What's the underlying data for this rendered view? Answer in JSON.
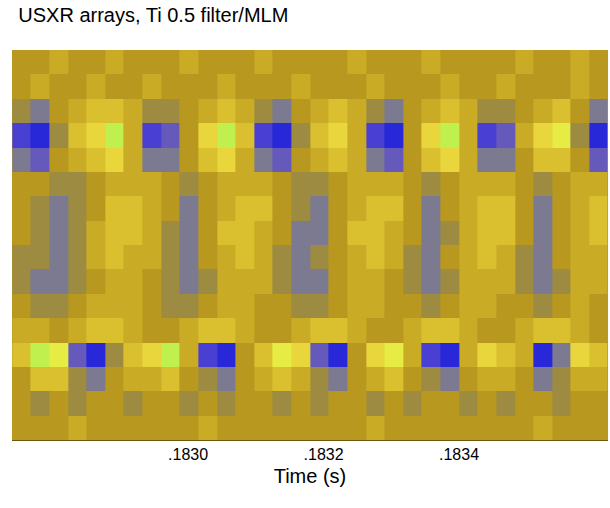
{
  "chart_data": {
    "type": "heatmap",
    "title": "USXR arrays, Ti 0.5 filter/MLM",
    "x_label": "Time (s)",
    "tick_labels": "x",
    "xlim": [
      0.18274,
      0.18362
    ],
    "xticks": [
      {
        "value": 0.183,
        "label": ".1830"
      },
      {
        "value": 0.1832,
        "label": ".1832"
      },
      {
        "value": 0.1834,
        "label": ".1834"
      }
    ],
    "x": [
      0.182754,
      0.182781,
      0.182809,
      0.182836,
      0.182864,
      0.182891,
      0.182919,
      0.182946,
      0.182974,
      0.183001,
      0.183029,
      0.183056,
      0.183084,
      0.183111,
      0.183139,
      0.183166,
      0.183194,
      0.183221,
      0.183249,
      0.183276,
      0.183304,
      0.183331,
      0.183359,
      0.183386,
      0.183414,
      0.183441,
      0.183469,
      0.183496,
      0.183524,
      0.183551,
      0.183579,
      0.183606
    ],
    "z": [
      [
        5,
        5,
        6,
        5,
        5,
        6,
        5,
        5,
        5,
        6,
        5,
        5,
        5,
        6,
        5,
        5,
        5,
        5,
        6,
        5,
        5,
        5,
        6,
        5,
        5,
        5,
        5,
        6,
        5,
        5,
        6,
        5
      ],
      [
        5,
        6,
        5,
        5,
        6,
        5,
        5,
        6,
        5,
        5,
        5,
        6,
        5,
        5,
        5,
        6,
        5,
        5,
        5,
        6,
        5,
        5,
        5,
        6,
        5,
        5,
        6,
        5,
        5,
        5,
        6,
        5
      ],
      [
        4,
        3,
        5,
        6,
        7,
        7,
        6,
        4,
        4,
        5,
        6,
        7,
        6,
        4,
        3,
        5,
        6,
        7,
        6,
        4,
        3,
        5,
        6,
        7,
        6,
        4,
        4,
        5,
        6,
        7,
        5,
        3
      ],
      [
        1,
        0,
        4,
        7,
        8,
        10,
        6,
        1,
        2,
        5,
        8,
        10,
        7,
        1,
        0,
        4,
        7,
        8,
        6,
        1,
        0,
        5,
        8,
        10,
        6,
        1,
        2,
        6,
        8,
        9,
        4,
        0
      ],
      [
        3,
        2,
        5,
        6,
        7,
        8,
        6,
        3,
        3,
        5,
        7,
        8,
        6,
        3,
        2,
        5,
        6,
        7,
        6,
        3,
        2,
        5,
        7,
        8,
        6,
        3,
        3,
        5,
        7,
        7,
        5,
        2
      ],
      [
        5,
        5,
        4,
        4,
        5,
        6,
        6,
        6,
        5,
        4,
        5,
        6,
        6,
        6,
        5,
        4,
        4,
        5,
        6,
        6,
        6,
        5,
        4,
        5,
        6,
        6,
        6,
        5,
        4,
        5,
        6,
        6
      ],
      [
        5,
        4,
        3,
        4,
        5,
        7,
        7,
        6,
        5,
        3,
        5,
        6,
        7,
        7,
        5,
        4,
        3,
        5,
        6,
        7,
        7,
        5,
        3,
        5,
        6,
        7,
        7,
        5,
        3,
        5,
        6,
        7
      ],
      [
        5,
        4,
        3,
        4,
        6,
        7,
        7,
        6,
        4,
        3,
        5,
        7,
        7,
        6,
        5,
        3,
        3,
        5,
        7,
        7,
        6,
        5,
        3,
        4,
        6,
        7,
        7,
        5,
        3,
        5,
        6,
        7
      ],
      [
        4,
        4,
        3,
        4,
        6,
        7,
        6,
        6,
        4,
        3,
        5,
        6,
        7,
        6,
        4,
        3,
        4,
        5,
        6,
        7,
        6,
        4,
        3,
        5,
        6,
        7,
        6,
        4,
        3,
        5,
        6,
        6
      ],
      [
        4,
        3,
        3,
        4,
        5,
        6,
        6,
        5,
        4,
        3,
        4,
        6,
        6,
        6,
        4,
        3,
        3,
        5,
        6,
        6,
        5,
        4,
        3,
        4,
        6,
        6,
        6,
        4,
        3,
        4,
        6,
        6
      ],
      [
        5,
        4,
        4,
        5,
        6,
        6,
        6,
        5,
        4,
        4,
        5,
        6,
        6,
        5,
        5,
        4,
        4,
        5,
        6,
        6,
        5,
        5,
        4,
        5,
        6,
        6,
        5,
        5,
        4,
        5,
        6,
        5
      ],
      [
        6,
        6,
        5,
        6,
        7,
        7,
        6,
        5,
        5,
        6,
        7,
        7,
        6,
        5,
        5,
        6,
        7,
        7,
        6,
        5,
        5,
        6,
        7,
        7,
        6,
        5,
        5,
        6,
        7,
        7,
        6,
        5
      ],
      [
        7,
        10,
        9,
        2,
        0,
        4,
        7,
        8,
        10,
        6,
        1,
        0,
        5,
        7,
        9,
        8,
        2,
        0,
        5,
        8,
        9,
        6,
        1,
        0,
        6,
        8,
        7,
        6,
        0,
        3,
        8,
        7
      ],
      [
        5,
        7,
        7,
        4,
        3,
        5,
        6,
        6,
        7,
        5,
        4,
        3,
        5,
        6,
        7,
        6,
        4,
        3,
        5,
        6,
        7,
        5,
        4,
        3,
        5,
        6,
        6,
        5,
        3,
        4,
        6,
        6
      ],
      [
        5,
        4,
        5,
        4,
        5,
        5,
        4,
        5,
        5,
        4,
        5,
        4,
        5,
        5,
        4,
        5,
        4,
        5,
        5,
        4,
        5,
        4,
        5,
        5,
        4,
        5,
        4,
        5,
        5,
        4,
        5,
        5
      ],
      [
        5,
        5,
        5,
        6,
        5,
        5,
        5,
        5,
        5,
        5,
        6,
        5,
        5,
        5,
        5,
        5,
        5,
        5,
        5,
        6,
        5,
        5,
        5,
        5,
        5,
        5,
        5,
        5,
        6,
        5,
        5,
        5
      ]
    ]
  }
}
